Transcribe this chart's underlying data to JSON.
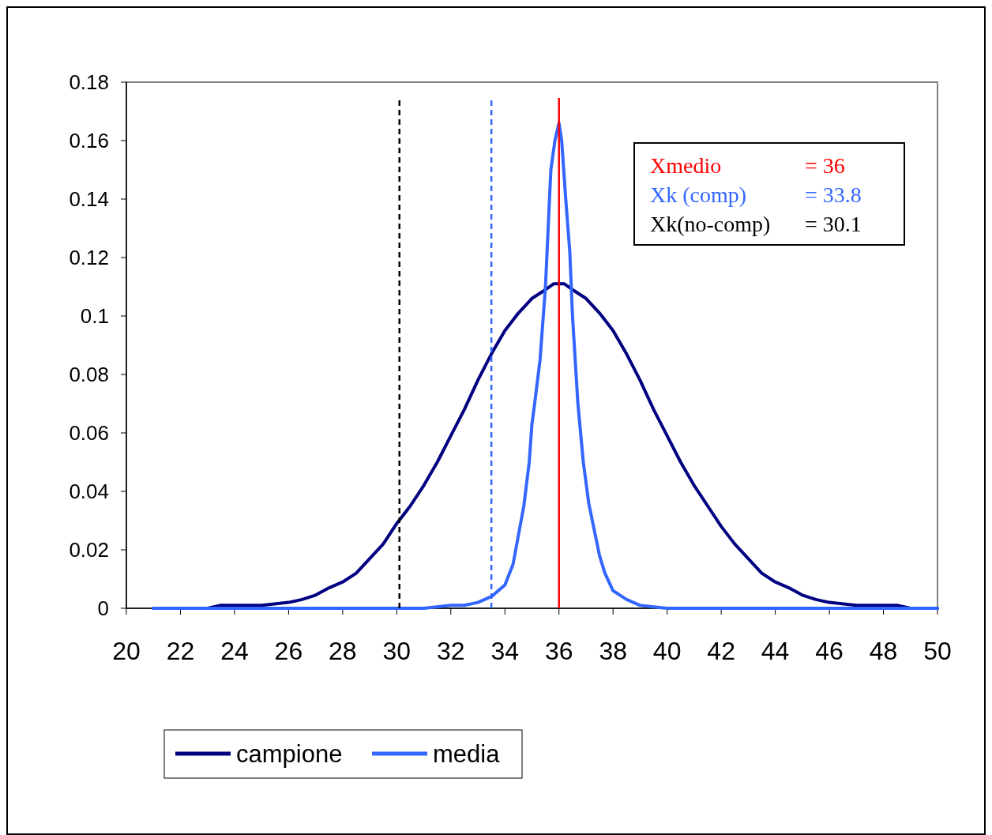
{
  "chart_data": {
    "type": "line",
    "xlim": [
      20,
      50
    ],
    "xticks": [
      20,
      22,
      24,
      26,
      28,
      30,
      32,
      34,
      36,
      38,
      40,
      42,
      44,
      46,
      48,
      50
    ],
    "ylim": [
      0,
      0.18
    ],
    "yticks": [
      0,
      0.02,
      0.04,
      0.06,
      0.08,
      {
        "value": 0.1,
        "label": "0.1"
      },
      0.12,
      0.14,
      0.16,
      0.18
    ],
    "grid": false,
    "legend": "bottom",
    "line_style": "solid",
    "series": [
      {
        "name": "campione",
        "color": "#000080",
        "x": [
          21,
          22,
          23,
          23.5,
          24,
          25,
          26,
          26.5,
          27,
          27.5,
          28,
          28.5,
          29,
          29.5,
          30,
          30.5,
          31,
          31.5,
          32,
          32.5,
          33,
          33.5,
          34,
          34.5,
          35,
          35.5,
          35.8,
          36.2,
          36.5,
          37,
          37.5,
          38,
          38.5,
          39,
          39.5,
          40,
          40.5,
          41,
          41.5,
          42,
          42.5,
          43,
          43.5,
          44,
          44.5,
          45,
          45.5,
          46,
          47,
          48,
          48.5,
          49,
          50
        ],
        "values": [
          0,
          0,
          0,
          0.001,
          0.001,
          0.001,
          0.002,
          0.003,
          0.0045,
          0.007,
          0.009,
          0.012,
          0.017,
          0.022,
          0.029,
          0.035,
          0.042,
          0.05,
          0.059,
          0.068,
          0.078,
          0.087,
          0.095,
          0.101,
          0.106,
          0.109,
          0.111,
          0.111,
          0.109,
          0.106,
          0.101,
          0.095,
          0.087,
          0.078,
          0.068,
          0.059,
          0.05,
          0.042,
          0.035,
          0.028,
          0.022,
          0.017,
          0.012,
          0.009,
          0.007,
          0.0045,
          0.003,
          0.002,
          0.001,
          0.001,
          0.001,
          0,
          0
        ]
      },
      {
        "name": "media",
        "color": "#3366ff",
        "x": [
          21,
          31,
          32,
          32.5,
          33,
          33.5,
          34,
          34.3,
          34.5,
          34.7,
          34.9,
          35,
          35.1,
          35.3,
          35.5,
          35.6,
          35.7,
          35.85,
          36,
          36.1,
          36.25,
          36.4,
          36.5,
          36.7,
          36.9,
          37.1,
          37.3,
          37.5,
          37.7,
          38,
          38.5,
          39,
          39.5,
          40,
          50
        ],
        "values": [
          0,
          0,
          0.001,
          0.001,
          0.002,
          0.004,
          0.008,
          0.015,
          0.025,
          0.035,
          0.05,
          0.063,
          0.07,
          0.085,
          0.11,
          0.13,
          0.15,
          0.16,
          0.166,
          0.16,
          0.14,
          0.122,
          0.1,
          0.07,
          0.05,
          0.036,
          0.027,
          0.018,
          0.012,
          0.006,
          0.003,
          0.001,
          0.0005,
          0,
          0
        ]
      }
    ],
    "ref_lines": [
      {
        "axis": "x",
        "value": 36,
        "color": "#ff0000",
        "line_style": "solid"
      },
      {
        "axis": "x",
        "value": 33.5,
        "color": "#3366ff",
        "line_style": "dashed"
      },
      {
        "axis": "x",
        "value": 30.1,
        "color": "#000000",
        "line_style": "dashed"
      }
    ],
    "annotations": [
      "Xmedio = 36",
      "Xk (comp) = 33.8",
      "Xk(no-comp) = 30.1"
    ]
  }
}
